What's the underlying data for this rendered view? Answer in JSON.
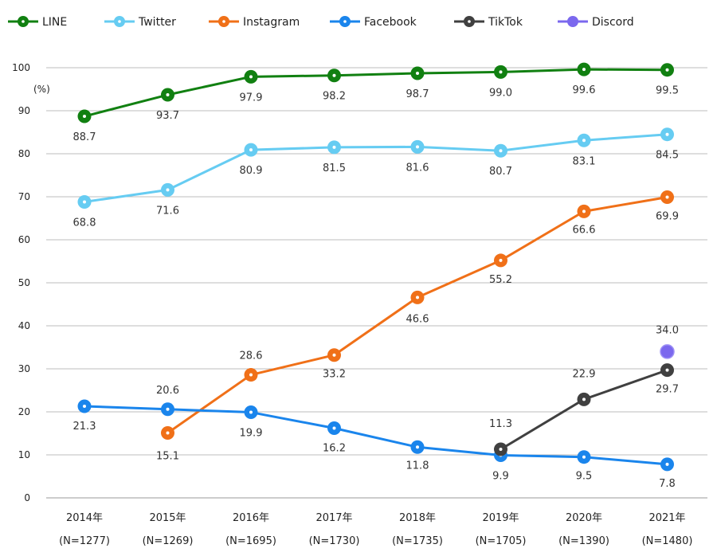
{
  "chart_data": {
    "type": "line",
    "categories": [
      "2014年",
      "2015年",
      "2016年",
      "2017年",
      "2018年",
      "2019年",
      "2020年",
      "2021年"
    ],
    "category_sublabels": [
      "(N=1277)",
      "(N=1269)",
      "(N=1695)",
      "(N=1730)",
      "(N=1735)",
      "(N=1705)",
      "(N=1390)",
      "(N=1480)"
    ],
    "ylabel": "(%)",
    "ylim": [
      0,
      100
    ],
    "yticks": [
      0,
      10,
      20,
      30,
      40,
      50,
      60,
      70,
      80,
      90,
      100
    ],
    "grid": true,
    "legend_position": "top",
    "series": [
      {
        "name": "LINE",
        "color": "#118011",
        "values": [
          88.7,
          93.7,
          97.9,
          98.2,
          98.7,
          99.0,
          99.6,
          99.5
        ],
        "labels": [
          "88.7",
          "93.7",
          "97.9",
          "98.2",
          "98.7",
          "99.0",
          "99.6",
          "99.5"
        ]
      },
      {
        "name": "Twitter",
        "color": "#66ccf2",
        "values": [
          68.8,
          71.6,
          80.9,
          81.5,
          81.6,
          80.7,
          83.1,
          84.5
        ],
        "labels": [
          "68.8",
          "71.6",
          "80.9",
          "81.5",
          "81.6",
          "80.7",
          "83.1",
          "84.5"
        ]
      },
      {
        "name": "Instagram",
        "color": "#f07018",
        "values": [
          null,
          15.1,
          28.6,
          33.2,
          46.6,
          55.2,
          66.6,
          69.9
        ],
        "labels": [
          null,
          "15.1",
          "28.6",
          "33.2",
          "46.6",
          "55.2",
          "66.6",
          "69.9"
        ]
      },
      {
        "name": "Facebook",
        "color": "#1a85ec",
        "values": [
          21.3,
          20.6,
          19.9,
          16.2,
          11.8,
          9.9,
          9.5,
          7.8
        ],
        "labels": [
          "21.3",
          "20.6",
          "19.9",
          "16.2",
          "11.8",
          "9.9",
          "9.5",
          "7.8"
        ]
      },
      {
        "name": "TikTok",
        "color": "#404040",
        "values": [
          null,
          null,
          null,
          null,
          null,
          11.3,
          22.9,
          29.7
        ],
        "labels": [
          null,
          null,
          null,
          null,
          null,
          "11.3",
          "22.9",
          "29.7"
        ]
      },
      {
        "name": "Discord",
        "color": "#7b68ee",
        "values": [
          null,
          null,
          null,
          null,
          null,
          null,
          null,
          34.0
        ],
        "labels": [
          null,
          null,
          null,
          null,
          null,
          null,
          null,
          "34.0"
        ]
      }
    ]
  }
}
